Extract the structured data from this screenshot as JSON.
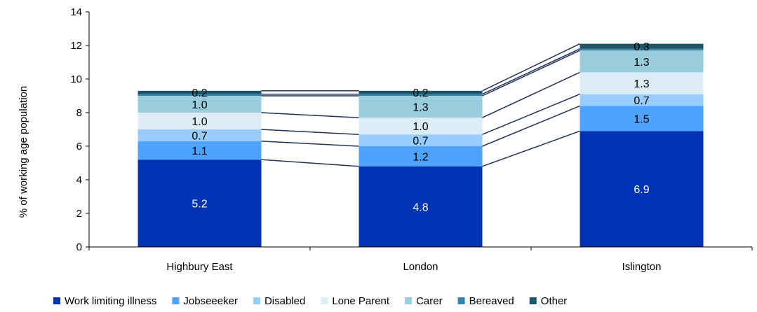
{
  "chart_data": {
    "type": "bar",
    "stacked": true,
    "ylabel": "% of working age population",
    "ylim": [
      0,
      14
    ],
    "yticks": [
      0,
      2,
      4,
      6,
      8,
      10,
      12,
      14
    ],
    "categories": [
      "Highbury East",
      "London",
      "Islington"
    ],
    "series": [
      {
        "name": "Work limiting illness",
        "values": [
          5.2,
          4.8,
          6.9
        ],
        "labels": [
          "5.2",
          "4.8",
          "6.9"
        ],
        "color": "#0033b3",
        "label_color": "#ffffff"
      },
      {
        "name": "Jobseeeker",
        "values": [
          1.1,
          1.2,
          1.5
        ],
        "labels": [
          "1.1",
          "1.2",
          "1.5"
        ],
        "color": "#4da3ff",
        "label_color": "#000000"
      },
      {
        "name": "Disabled",
        "values": [
          0.7,
          0.7,
          0.7
        ],
        "labels": [
          "0.7",
          "0.7",
          "0.7"
        ],
        "color": "#99ccff",
        "label_color": "#000000"
      },
      {
        "name": "Lone Parent",
        "values": [
          1.0,
          1.0,
          1.3
        ],
        "labels": [
          "1.0",
          "1.0",
          "1.3"
        ],
        "color": "#dcedf5",
        "label_color": "#000000"
      },
      {
        "name": "Carer",
        "values": [
          1.0,
          1.3,
          1.3
        ],
        "labels": [
          "1.0",
          "1.3",
          "1.3"
        ],
        "color": "#99ccdd",
        "label_color": "#000000"
      },
      {
        "name": "Bereaved",
        "values": [
          0.1,
          0.1,
          0.1
        ],
        "labels": [
          "",
          "",
          ""
        ],
        "color": "#3388aa",
        "label_color": "#000000"
      },
      {
        "name": "Other",
        "values": [
          0.2,
          0.2,
          0.3
        ],
        "labels": [
          "0.2",
          "0.2",
          "0.3"
        ],
        "color": "#1f5566",
        "label_color": "#000000"
      }
    ],
    "connector_lines": true,
    "connector_color": "#223355",
    "grid": false,
    "legend_position": "bottom"
  }
}
